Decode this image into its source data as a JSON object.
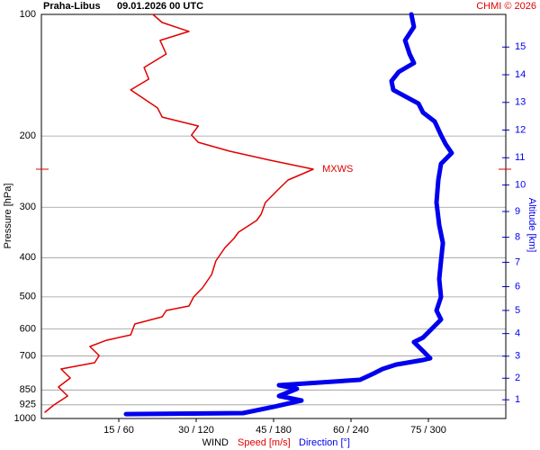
{
  "chart_data": {
    "type": "profile",
    "title": "Praha-Libus",
    "subtitle": "09.01.2026 00 UTC",
    "credit": "CHMI © 2026",
    "ylabel": "Pressure [hPa]",
    "y2label": "Altitude [km]",
    "xlabel": "WIND",
    "yscale": "log",
    "ylim": [
      1000,
      100
    ],
    "yticks": [
      100,
      200,
      300,
      400,
      500,
      600,
      700,
      850,
      925,
      1000
    ],
    "y2ticks": [
      1,
      2,
      3,
      4,
      5,
      6,
      7,
      8,
      9,
      10,
      11,
      12,
      13,
      14,
      15
    ],
    "xlim": [
      0,
      90
    ],
    "x2lim": [
      0,
      360
    ],
    "xticks": [
      {
        "value": 15,
        "label": "15 / 60"
      },
      {
        "value": 30,
        "label": "30 / 120"
      },
      {
        "value": 45,
        "label": "45 / 180"
      },
      {
        "value": 60,
        "label": "60 / 240"
      },
      {
        "value": 75,
        "label": "75 / 300"
      }
    ],
    "grid": true,
    "annotations": [
      {
        "text": "MXWS",
        "y": 241.6
      }
    ],
    "series": [
      {
        "name": "Speed [m/s]",
        "color": "#e00000",
        "y": [
          964.7,
          925.9,
          879.7,
          835.7,
          794.1,
          754.3,
          727.8,
          698.6,
          663.6,
          640.3,
          620.9,
          583.7,
          560.3,
          540.5,
          526.8,
          500.5,
          475.4,
          440.2,
          407.6,
          377.4,
          358.5,
          345.9,
          323.6,
          312.2,
          292.2,
          270.5,
          256.9,
          241.6,
          229.5,
          218.0,
          207.2,
          198.9,
          188.9,
          179.5,
          170.4,
          153.8,
          144.6,
          135.3,
          125.3,
          116.0,
          110.2,
          104.7,
          100
        ],
        "values": [
          0.7,
          2.4,
          5.1,
          3.3,
          5.6,
          3.8,
          10.3,
          11.2,
          9.4,
          12.6,
          17.3,
          18.1,
          23.4,
          24.2,
          28.6,
          29.5,
          31.2,
          33.0,
          33.8,
          35.6,
          37.3,
          38.2,
          41.7,
          42.6,
          43.4,
          46.0,
          47.8,
          52.7,
          44.3,
          36.5,
          30.4,
          29.1,
          30.4,
          23.4,
          22.5,
          17.3,
          20.8,
          19.9,
          24.2,
          23.0,
          28.6,
          23.4,
          21.6
        ]
      },
      {
        "name": "Direction [°]",
        "color": "#0000ee",
        "axis": "x2",
        "y": [
          975,
          969.6,
          934.6,
          902.6,
          879.7,
          844.2,
          827.1,
          802.3,
          774.1,
          754.3,
          735.4,
          716.7,
          709.4,
          680.8,
          646.9,
          630.5,
          599.0,
          568.8,
          540.5,
          500.5,
          451.6,
          407.6,
          367.9,
          332.1,
          292.2,
          256.9,
          234.3,
          220.3,
          209.3,
          198.9,
          184.1,
          174.9,
          166.2,
          153.8,
          146.2,
          138.8,
          131.9,
          125.3,
          116.0,
          107.4,
          100
        ],
        "values": [
          65.6,
          156.3,
          180.7,
          201.6,
          184.2,
          198.1,
          184.2,
          247.0,
          257.4,
          264.4,
          274.9,
          295.8,
          301.4,
          295.8,
          288.8,
          295.8,
          302.8,
          309.8,
          306.3,
          309.8,
          308.4,
          309.8,
          311.2,
          308.4,
          306.3,
          307.7,
          309.8,
          318.1,
          313.3,
          309.8,
          304.9,
          295.8,
          292.3,
          272.8,
          271.4,
          277.0,
          288.8,
          285.4,
          281.9,
          288.8,
          286.8
        ]
      }
    ]
  }
}
